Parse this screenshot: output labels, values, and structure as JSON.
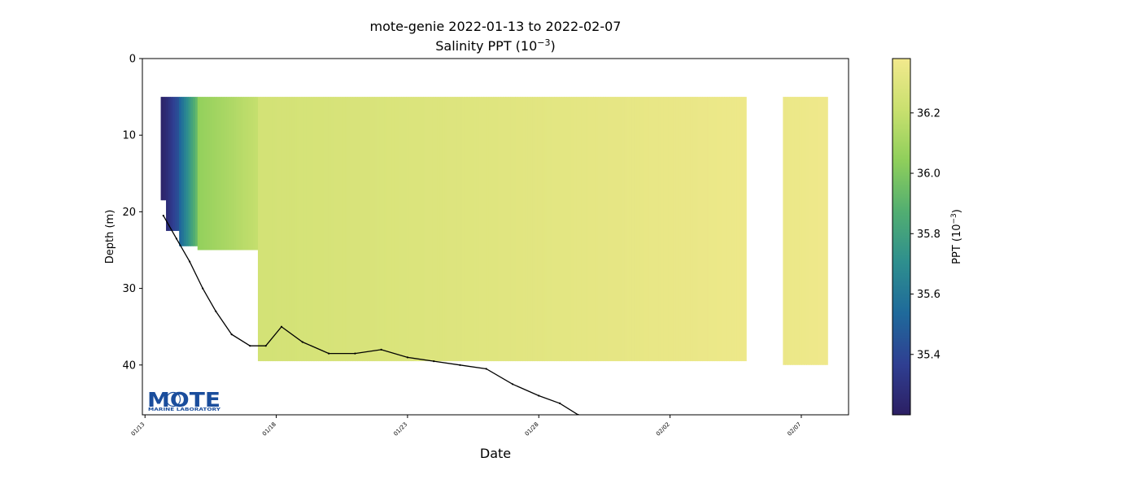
{
  "chart_data": {
    "type": "scatter",
    "title": "mote-genie 2022-01-13 to 2022-02-07",
    "subtitle_text": "Salinity PPT (10",
    "subtitle_exp": "−3",
    "subtitle_close": ")",
    "xlabel": "Date",
    "ylabel": "Depth (m)",
    "x_range": [
      "2022-01-12.9",
      "2022-02-08.8"
    ],
    "ylim": [
      46.5,
      0
    ],
    "y_ticks": [
      0,
      10,
      20,
      30,
      40
    ],
    "x_ticks": [
      {
        "date": "2022-01-13",
        "label": "01/13"
      },
      {
        "date": "2022-01-18",
        "label": "01/18"
      },
      {
        "date": "2022-01-23",
        "label": "01/23"
      },
      {
        "date": "2022-01-28",
        "label": "01/28"
      },
      {
        "date": "2022-02-02",
        "label": "02/02"
      },
      {
        "date": "2022-02-07",
        "label": "02/07"
      }
    ],
    "colorbar": {
      "label_text": "PPT (10",
      "label_exp": "−3",
      "label_close": ")",
      "range": [
        35.2,
        36.38
      ],
      "ticks": [
        35.4,
        35.6,
        35.8,
        36.0,
        36.2
      ],
      "colormap": [
        "#2c1f63",
        "#2f3f92",
        "#1f6a9b",
        "#2e8f8e",
        "#52ae71",
        "#8fcf5b",
        "#c9e06f",
        "#f2e98d"
      ]
    },
    "series": [
      {
        "kind": "salinity",
        "segments": [
          {
            "start": "2022-01-13.6",
            "end": "2022-01-13.8",
            "depth": [
              5,
              18.5
            ],
            "salinity": [
              35.22,
              35.26
            ]
          },
          {
            "start": "2022-01-13.8",
            "end": "2022-01-14.3",
            "depth": [
              5,
              22.5
            ],
            "salinity": [
              35.26,
              35.45
            ]
          },
          {
            "start": "2022-01-14.3",
            "end": "2022-01-15.0",
            "depth": [
              5,
              24.5
            ],
            "salinity": [
              35.5,
              35.95
            ]
          },
          {
            "start": "2022-01-15.0",
            "end": "2022-01-17.3",
            "depth": [
              5,
              25
            ],
            "salinity": [
              36.05,
              36.2
            ]
          },
          {
            "start": "2022-01-17.3",
            "end": "2022-02-04.9",
            "depth": [
              5,
              39.5
            ],
            "salinity": [
              36.25,
              36.36
            ]
          },
          {
            "start": "2022-02-06.3",
            "end": "2022-02-08.0",
            "depth": [
              5,
              40
            ],
            "salinity": [
              36.35,
              36.37
            ]
          }
        ]
      },
      {
        "kind": "bottom-depth",
        "points": [
          [
            "2022-01-13.7",
            20.5
          ],
          [
            "2022-01-14.2",
            23.5
          ],
          [
            "2022-01-14.7",
            26.5
          ],
          [
            "2022-01-15.2",
            30
          ],
          [
            "2022-01-15.7",
            33
          ],
          [
            "2022-01-16.3",
            36
          ],
          [
            "2022-01-17.0",
            37.5
          ],
          [
            "2022-01-17.6",
            37.5
          ],
          [
            "2022-01-18.2",
            35
          ],
          [
            "2022-01-19.0",
            37
          ],
          [
            "2022-01-20.0",
            38.5
          ],
          [
            "2022-01-21.0",
            38.5
          ],
          [
            "2022-01-22.0",
            38
          ],
          [
            "2022-01-23.0",
            39
          ],
          [
            "2022-01-24.0",
            39.5
          ],
          [
            "2022-01-25.0",
            40
          ],
          [
            "2022-01-26.0",
            40.5
          ],
          [
            "2022-01-27.0",
            42.5
          ],
          [
            "2022-01-28.0",
            44
          ],
          [
            "2022-01-28.8",
            45
          ],
          [
            "2022-01-29.5",
            46.5
          ]
        ]
      }
    ]
  },
  "logo": {
    "text": "MOTE",
    "subtext": "MARINE LABORATORY",
    "color": "#1a4d9c"
  }
}
